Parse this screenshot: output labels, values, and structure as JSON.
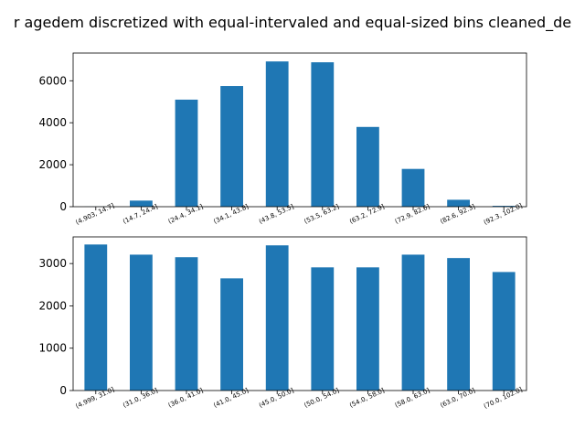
{
  "figure": {
    "title": "r agedem discretized with equal-intervaled and equal-sized bins cleaned_de"
  },
  "colors": {
    "bar": "#1f77b4",
    "axis": "#000000",
    "background": "#ffffff"
  },
  "chart_data": [
    {
      "type": "bar",
      "categories": [
        "(4.903, 14.7]",
        "(14.7, 24.4]",
        "(24.4, 34.1]",
        "(34.1, 43.8]",
        "(43.8, 53.5]",
        "(53.5, 63.2]",
        "(63.2, 72.9]",
        "(72.9, 82.6]",
        "(82.6, 92.3]",
        "(92.3, 102.0]"
      ],
      "values": [
        5,
        290,
        5100,
        5750,
        6920,
        6880,
        3800,
        1800,
        330,
        40
      ],
      "yticks": [
        0,
        2000,
        4000,
        6000
      ],
      "ylim": [
        0,
        7320
      ],
      "grid": false,
      "legend": "none"
    },
    {
      "type": "bar",
      "categories": [
        "(4.999, 31.0]",
        "(31.0, 36.0]",
        "(36.0, 41.0]",
        "(41.0, 45.0]",
        "(45.0, 50.0]",
        "(50.0, 54.0]",
        "(54.0, 58.0]",
        "(58.0, 63.0]",
        "(63.0, 70.0]",
        "(70.0, 102.0]"
      ],
      "values": [
        3450,
        3210,
        3150,
        2650,
        3430,
        2910,
        2910,
        3210,
        3130,
        2800
      ],
      "yticks": [
        0,
        1000,
        2000,
        3000
      ],
      "ylim": [
        0,
        3630
      ],
      "grid": false,
      "legend": "none"
    }
  ]
}
